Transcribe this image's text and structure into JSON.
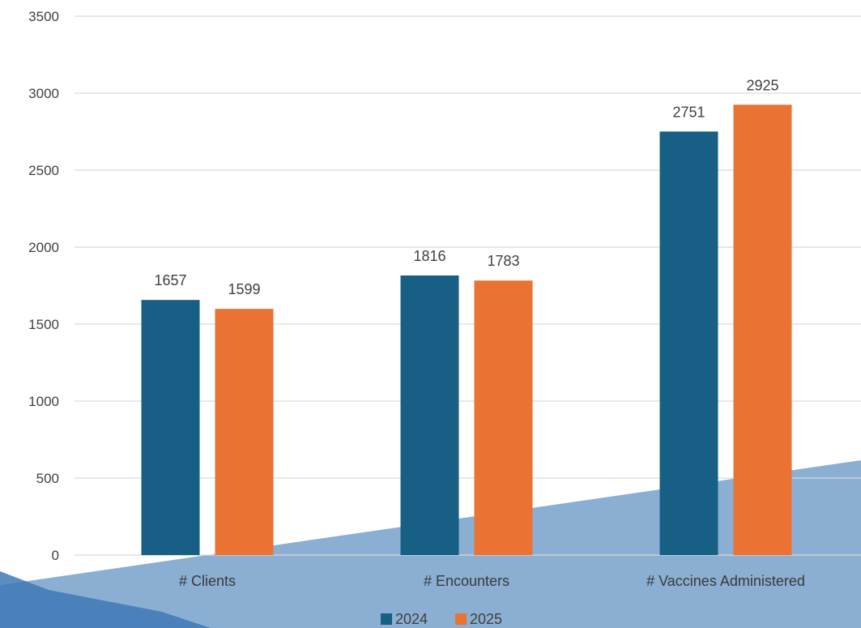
{
  "chart_data": {
    "type": "bar",
    "title": "",
    "xlabel": "",
    "ylabel": "",
    "categories": [
      "# Clients",
      "# Encounters",
      "# Vaccines Administered"
    ],
    "series": [
      {
        "name": "2024",
        "values": [
          1657,
          1816,
          2751
        ],
        "color": "#175F84"
      },
      {
        "name": "2025",
        "values": [
          1599,
          1783,
          2925
        ],
        "color": "#EA7232"
      }
    ],
    "ylim": [
      0,
      3500
    ],
    "yticks": [
      0,
      500,
      1000,
      1500,
      2000,
      2500,
      3000,
      3500
    ],
    "grid": true,
    "legend": "bottom-center",
    "data_labels": true
  },
  "background": {
    "band_color": "#8AAFD3",
    "dark_band_color": "#3F79B5"
  }
}
